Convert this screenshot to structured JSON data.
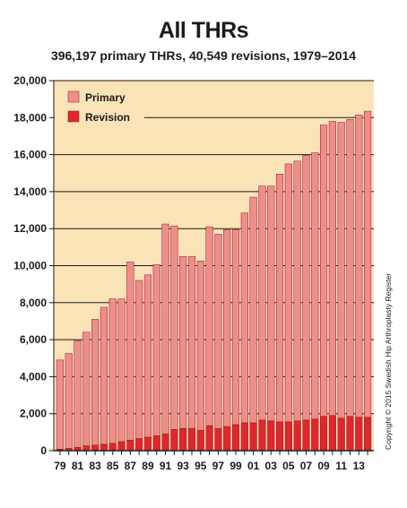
{
  "chart_data": {
    "type": "bar",
    "stacked": true,
    "title": "All THRs",
    "subtitle": "396,197 primary THRs, 40,549 revisions, 1979–2014",
    "x": [
      1979,
      1980,
      1981,
      1982,
      1983,
      1984,
      1985,
      1986,
      1987,
      1988,
      1989,
      1990,
      1991,
      1992,
      1993,
      1994,
      1995,
      1996,
      1997,
      1998,
      1999,
      2000,
      2001,
      2002,
      2003,
      2004,
      2005,
      2006,
      2007,
      2008,
      2009,
      2010,
      2011,
      2012,
      2013,
      2014
    ],
    "x_tick_labels": [
      "79",
      "81",
      "83",
      "85",
      "87",
      "89",
      "91",
      "93",
      "95",
      "97",
      "99",
      "01",
      "03",
      "05",
      "07",
      "09",
      "11",
      "13"
    ],
    "y_tick_labels": [
      "0",
      "2,000",
      "4,000",
      "6,000",
      "8,000",
      "10,000",
      "12,000",
      "14,000",
      "16,000",
      "18,000",
      "20,000"
    ],
    "ylim": [
      0,
      20000
    ],
    "grid": "horizontal",
    "legend_position": "top-left",
    "series": [
      {
        "name": "Revision",
        "color": "#e0262e",
        "values": [
          80,
          120,
          180,
          260,
          300,
          340,
          400,
          480,
          560,
          650,
          720,
          800,
          900,
          1150,
          1200,
          1200,
          1100,
          1350,
          1200,
          1300,
          1400,
          1500,
          1500,
          1650,
          1600,
          1550,
          1550,
          1600,
          1650,
          1700,
          1850,
          1900,
          1750,
          1850,
          1800,
          1800
        ]
      },
      {
        "name": "Primary",
        "color": "#ef8d8c",
        "values": [
          4820,
          5130,
          5770,
          6140,
          6800,
          7410,
          7800,
          7720,
          9640,
          8550,
          8780,
          9250,
          11350,
          11000,
          9300,
          9300,
          9150,
          10750,
          10500,
          10650,
          10550,
          11350,
          12200,
          12650,
          12700,
          13400,
          13950,
          14050,
          14300,
          14400,
          15750,
          15900,
          16000,
          16050,
          16350,
          16550
        ]
      }
    ],
    "legend": [
      {
        "label": "Primary",
        "color": "#ef8d8c"
      },
      {
        "label": "Revision",
        "color": "#e0262e"
      }
    ],
    "copyright": "Copyright © 2015 Swedish Hip Arthroplasty Register",
    "colors": {
      "plot_background": "#fbe3b8",
      "grid": "#1a1a1a",
      "bar_outline": "#8a1a1a"
    }
  }
}
